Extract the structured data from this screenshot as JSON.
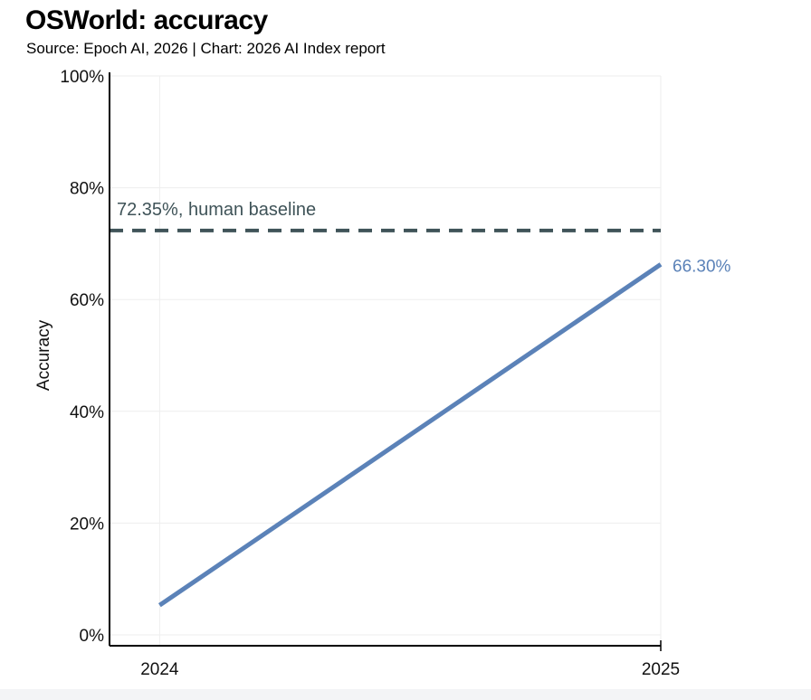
{
  "header": {
    "title": "OSWorld: accuracy",
    "subtitle": "Source: Epoch AI, 2026 | Chart: 2026 AI Index report"
  },
  "colors": {
    "series": "#5b82b8",
    "baseline": "#3f5358",
    "axis": "#000000",
    "grid": "#eeeeee"
  },
  "chart_data": {
    "type": "line",
    "title": "OSWorld: accuracy",
    "subtitle": "Source: Epoch AI, 2026 | Chart: 2026 AI Index report",
    "xlabel": "",
    "ylabel": "Accuracy",
    "x": [
      2024,
      2025
    ],
    "xlim": [
      2023.9,
      2025.0
    ],
    "ylim": [
      0,
      100
    ],
    "x_ticks": [
      {
        "value": 2024,
        "label": "2024"
      },
      {
        "value": 2025,
        "label": "2025"
      }
    ],
    "y_ticks": [
      {
        "value": 0,
        "label": "0%"
      },
      {
        "value": 20,
        "label": "20%"
      },
      {
        "value": 40,
        "label": "40%"
      },
      {
        "value": 60,
        "label": "60%"
      },
      {
        "value": 80,
        "label": "80%"
      },
      {
        "value": 100,
        "label": "100%"
      }
    ],
    "grid": true,
    "series": [
      {
        "name": "OSWorld accuracy",
        "x": [
          2024,
          2025
        ],
        "values": [
          5.3,
          66.3
        ],
        "end_label": "66.30%"
      }
    ],
    "reference_lines": [
      {
        "name": "human baseline",
        "value": 72.35,
        "style": "dashed",
        "label": "72.35%, human baseline"
      }
    ]
  }
}
